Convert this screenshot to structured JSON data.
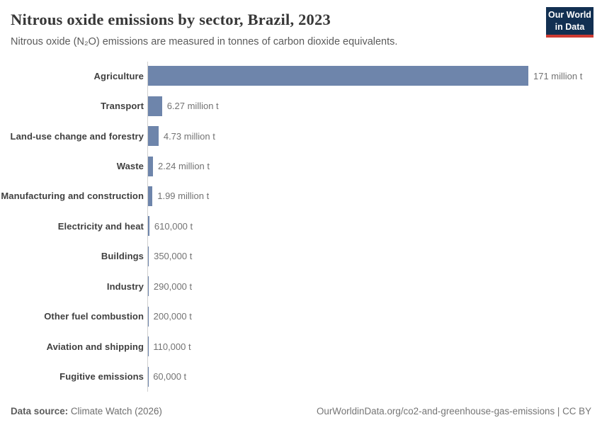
{
  "header": {
    "title": "Nitrous oxide emissions by sector, Brazil, 2023",
    "subtitle": "Nitrous oxide (N₂O) emissions are measured in tonnes of carbon dioxide equivalents.",
    "logo": {
      "line1": "Our World",
      "line2": "in Data"
    }
  },
  "chart_data": {
    "type": "bar",
    "orientation": "horizontal",
    "title": "Nitrous oxide emissions by sector, Brazil, 2023",
    "xlabel": "",
    "ylabel": "",
    "unit": "tonnes of CO2 equivalents",
    "xlim": [
      0,
      171000000
    ],
    "grid": false,
    "legend": false,
    "categories": [
      "Agriculture",
      "Transport",
      "Land-use change and forestry",
      "Waste",
      "Manufacturing and construction",
      "Electricity and heat",
      "Buildings",
      "Industry",
      "Other fuel combustion",
      "Aviation and shipping",
      "Fugitive emissions"
    ],
    "values": [
      171000000,
      6270000,
      4730000,
      2240000,
      1990000,
      610000,
      350000,
      290000,
      200000,
      110000,
      60000
    ],
    "value_labels": [
      "171 million t",
      "6.27 million t",
      "4.73 million t",
      "2.24 million t",
      "1.99 million t",
      "610,000 t",
      "350,000 t",
      "290,000 t",
      "200,000 t",
      "110,000 t",
      "60,000 t"
    ]
  },
  "colors": {
    "bar_color": "#6e85ab",
    "axis_color": "#d0d0d0",
    "logo_bg": "#123052",
    "logo_stripe": "#ce3b32"
  },
  "footer": {
    "source_label": "Data source:",
    "source_value": "Climate Watch (2026)",
    "attribution": "OurWorldinData.org/co2-and-greenhouse-gas-emissions | CC BY"
  }
}
